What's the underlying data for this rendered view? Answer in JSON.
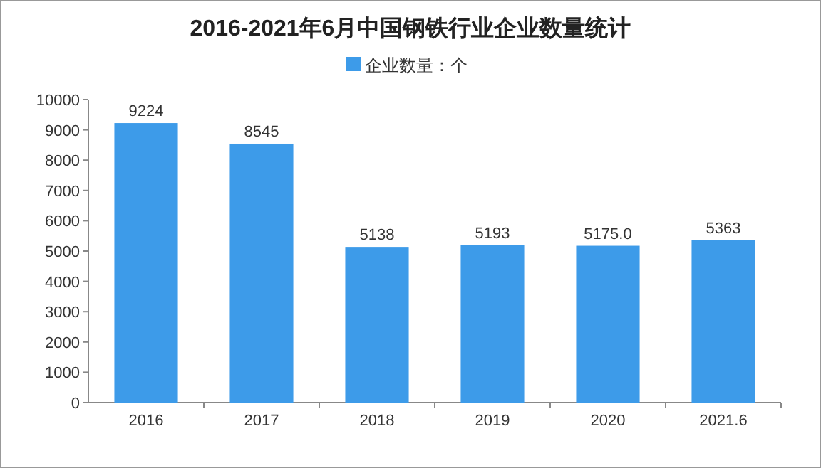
{
  "chart_data": {
    "type": "bar",
    "title": "2016-2021年6月中国钢铁行业企业数量统计",
    "categories": [
      "2016",
      "2017",
      "2018",
      "2019",
      "2020",
      "2021.6"
    ],
    "series": [
      {
        "name": "企业数量：个",
        "color": "#3d9be9",
        "values": [
          9224,
          8545,
          5138,
          5193,
          5175.0,
          5363
        ],
        "value_labels": [
          "9224",
          "8545",
          "5138",
          "5193",
          "5175.0",
          "5363"
        ]
      }
    ],
    "ylim": [
      0,
      10000
    ],
    "yticks": [
      0,
      1000,
      2000,
      3000,
      4000,
      5000,
      6000,
      7000,
      8000,
      9000,
      10000
    ],
    "grid": false,
    "legend": "top"
  }
}
